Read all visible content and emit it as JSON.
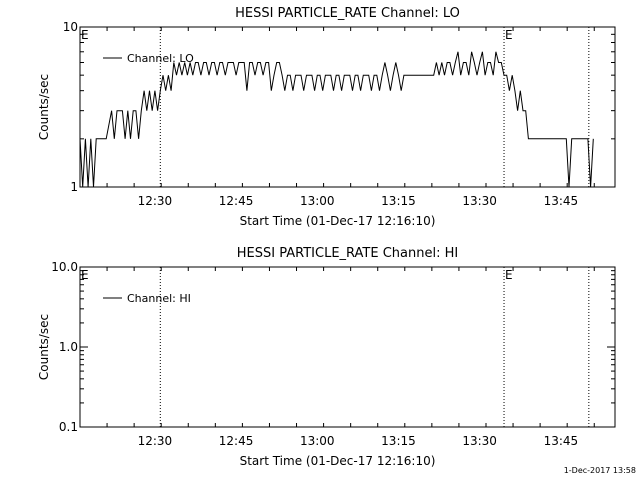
{
  "footer_timestamp": "1-Dec-2017 13:58",
  "chart_data": [
    {
      "type": "line",
      "title": "HESSI PARTICLE_RATE Channel: LO",
      "xlabel": "Start Time (01-Dec-17 12:16:10)",
      "ylabel": "Counts/sec",
      "xlim": [
        "12:16:10",
        "13:55:00"
      ],
      "ylim": [
        1,
        10
      ],
      "yscale": "log",
      "x_ticks": [
        "12:30",
        "12:45",
        "13:00",
        "13:15",
        "13:30",
        "13:45"
      ],
      "y_ticks": [
        "1",
        "10"
      ],
      "legend": {
        "entries": [
          "Channel: LO"
        ],
        "position": "top-left"
      },
      "vertical_markers": [
        {
          "time": "12:31:00",
          "label": ""
        },
        {
          "time": "13:34:30",
          "label": "E"
        },
        {
          "time": "13:50:10",
          "label": ""
        }
      ],
      "annotations": [
        {
          "text": "E",
          "at": "top-left"
        },
        {
          "text": "E",
          "at": "13:34:30"
        }
      ],
      "series": [
        {
          "name": "Channel: LO",
          "points": [
            [
              "12:16:10",
              2
            ],
            [
              "12:16:40",
              1
            ],
            [
              "12:17:10",
              2
            ],
            [
              "12:17:40",
              1
            ],
            [
              "12:18:10",
              2
            ],
            [
              "12:18:40",
              1
            ],
            [
              "12:19:10",
              2
            ],
            [
              "12:20:00",
              2
            ],
            [
              "12:21:00",
              2
            ],
            [
              "12:22:00",
              3
            ],
            [
              "12:22:30",
              2
            ],
            [
              "12:23:00",
              3
            ],
            [
              "12:24:00",
              3
            ],
            [
              "12:24:30",
              2
            ],
            [
              "12:25:00",
              3
            ],
            [
              "12:25:30",
              2
            ],
            [
              "12:26:00",
              3
            ],
            [
              "12:26:30",
              3
            ],
            [
              "12:27:00",
              2
            ],
            [
              "12:27:30",
              3
            ],
            [
              "12:28:00",
              4
            ],
            [
              "12:28:30",
              3
            ],
            [
              "12:29:00",
              4
            ],
            [
              "12:29:30",
              3
            ],
            [
              "12:30:00",
              4
            ],
            [
              "12:30:30",
              3
            ],
            [
              "12:31:00",
              4
            ],
            [
              "12:31:30",
              5
            ],
            [
              "12:32:00",
              4
            ],
            [
              "12:32:30",
              5
            ],
            [
              "12:33:00",
              4
            ],
            [
              "12:33:30",
              6
            ],
            [
              "12:34:00",
              5
            ],
            [
              "12:34:30",
              6
            ],
            [
              "12:35:00",
              5
            ],
            [
              "12:35:30",
              6
            ],
            [
              "12:36:00",
              5
            ],
            [
              "12:36:30",
              6
            ],
            [
              "12:37:00",
              5
            ],
            [
              "12:37:30",
              6
            ],
            [
              "12:38:00",
              6
            ],
            [
              "12:38:30",
              5
            ],
            [
              "12:39:00",
              6
            ],
            [
              "12:39:30",
              6
            ],
            [
              "12:40:00",
              5
            ],
            [
              "12:40:30",
              6
            ],
            [
              "12:41:00",
              6
            ],
            [
              "12:41:30",
              5
            ],
            [
              "12:42:00",
              6
            ],
            [
              "12:42:30",
              6
            ],
            [
              "12:43:00",
              5
            ],
            [
              "12:43:30",
              6
            ],
            [
              "12:44:00",
              6
            ],
            [
              "12:44:30",
              6
            ],
            [
              "12:45:00",
              5
            ],
            [
              "12:45:30",
              6
            ],
            [
              "12:46:00",
              6
            ],
            [
              "12:46:30",
              6
            ],
            [
              "12:47:00",
              4
            ],
            [
              "12:47:30",
              6
            ],
            [
              "12:48:00",
              6
            ],
            [
              "12:48:30",
              5
            ],
            [
              "12:49:00",
              6
            ],
            [
              "12:49:30",
              6
            ],
            [
              "12:50:00",
              5
            ],
            [
              "12:50:30",
              6
            ],
            [
              "12:51:00",
              6
            ],
            [
              "12:51:30",
              4
            ],
            [
              "12:52:00",
              5
            ],
            [
              "12:52:30",
              6
            ],
            [
              "12:53:00",
              6
            ],
            [
              "12:53:30",
              5
            ],
            [
              "12:54:00",
              4
            ],
            [
              "12:54:30",
              5
            ],
            [
              "12:55:00",
              5
            ],
            [
              "12:55:30",
              4
            ],
            [
              "12:56:00",
              5
            ],
            [
              "12:56:30",
              5
            ],
            [
              "12:57:00",
              5
            ],
            [
              "12:57:30",
              4
            ],
            [
              "12:58:00",
              5
            ],
            [
              "12:58:30",
              5
            ],
            [
              "12:59:00",
              5
            ],
            [
              "12:59:30",
              4
            ],
            [
              "13:00:00",
              5
            ],
            [
              "13:00:30",
              5
            ],
            [
              "13:01:00",
              4
            ],
            [
              "13:01:30",
              5
            ],
            [
              "13:02:00",
              5
            ],
            [
              "13:02:30",
              5
            ],
            [
              "13:03:00",
              4
            ],
            [
              "13:03:30",
              5
            ],
            [
              "13:04:00",
              5
            ],
            [
              "13:04:30",
              4
            ],
            [
              "13:05:00",
              5
            ],
            [
              "13:05:30",
              5
            ],
            [
              "13:06:00",
              5
            ],
            [
              "13:06:30",
              4
            ],
            [
              "13:07:00",
              5
            ],
            [
              "13:07:30",
              5
            ],
            [
              "13:08:00",
              4
            ],
            [
              "13:08:30",
              5
            ],
            [
              "13:09:00",
              5
            ],
            [
              "13:09:30",
              5
            ],
            [
              "13:10:00",
              4
            ],
            [
              "13:10:30",
              5
            ],
            [
              "13:11:00",
              5
            ],
            [
              "13:11:30",
              4
            ],
            [
              "13:12:00",
              5
            ],
            [
              "13:12:30",
              6
            ],
            [
              "13:13:00",
              5
            ],
            [
              "13:13:30",
              4
            ],
            [
              "13:14:00",
              5
            ],
            [
              "13:14:30",
              6
            ],
            [
              "13:15:00",
              5
            ],
            [
              "13:15:30",
              4
            ],
            [
              "13:16:00",
              5
            ],
            [
              "13:16:30",
              5
            ],
            [
              "13:17:00",
              5
            ],
            [
              "13:17:30",
              5
            ],
            [
              "13:18:00",
              5
            ],
            [
              "13:18:30",
              5
            ],
            [
              "13:19:00",
              5
            ],
            [
              "13:19:30",
              5
            ],
            [
              "13:20:00",
              5
            ],
            [
              "13:20:30",
              5
            ],
            [
              "13:21:00",
              5
            ],
            [
              "13:21:30",
              5
            ],
            [
              "13:22:00",
              6
            ],
            [
              "13:22:30",
              5
            ],
            [
              "13:23:00",
              6
            ],
            [
              "13:23:30",
              5
            ],
            [
              "13:24:00",
              6
            ],
            [
              "13:24:30",
              6
            ],
            [
              "13:25:00",
              5
            ],
            [
              "13:25:30",
              6
            ],
            [
              "13:26:00",
              7
            ],
            [
              "13:26:30",
              5
            ],
            [
              "13:27:00",
              6
            ],
            [
              "13:27:30",
              6
            ],
            [
              "13:28:00",
              5
            ],
            [
              "13:28:30",
              7
            ],
            [
              "13:29:00",
              6
            ],
            [
              "13:29:30",
              5
            ],
            [
              "13:30:00",
              6
            ],
            [
              "13:30:30",
              7
            ],
            [
              "13:31:00",
              5
            ],
            [
              "13:31:30",
              6
            ],
            [
              "13:32:00",
              6
            ],
            [
              "13:32:30",
              5
            ],
            [
              "13:33:00",
              7
            ],
            [
              "13:33:30",
              6
            ],
            [
              "13:34:00",
              6
            ],
            [
              "13:34:30",
              5
            ],
            [
              "13:35:00",
              5
            ],
            [
              "13:35:30",
              4
            ],
            [
              "13:36:00",
              5
            ],
            [
              "13:36:30",
              4
            ],
            [
              "13:37:00",
              3
            ],
            [
              "13:37:30",
              4
            ],
            [
              "13:38:00",
              3
            ],
            [
              "13:38:30",
              3
            ],
            [
              "13:39:00",
              2
            ],
            [
              "13:40:00",
              2
            ],
            [
              "13:41:00",
              2
            ],
            [
              "13:42:00",
              2
            ],
            [
              "13:43:00",
              2
            ],
            [
              "13:44:00",
              2
            ],
            [
              "13:45:00",
              2
            ],
            [
              "13:46:00",
              2
            ],
            [
              "13:46:30",
              1
            ],
            [
              "13:47:00",
              2
            ],
            [
              "13:48:00",
              2
            ],
            [
              "13:49:00",
              2
            ],
            [
              "13:50:00",
              2
            ],
            [
              "13:50:30",
              1
            ],
            [
              "13:51:00",
              2
            ]
          ]
        }
      ]
    },
    {
      "type": "line",
      "title": "HESSI PARTICLE_RATE Channel: HI",
      "xlabel": "Start Time (01-Dec-17 12:16:10)",
      "ylabel": "Counts/sec",
      "xlim": [
        "12:16:10",
        "13:55:00"
      ],
      "ylim": [
        0.1,
        10
      ],
      "yscale": "log",
      "x_ticks": [
        "12:30",
        "12:45",
        "13:00",
        "13:15",
        "13:30",
        "13:45"
      ],
      "y_ticks": [
        "0.1",
        "1.0",
        "10.0"
      ],
      "legend": {
        "entries": [
          "Channel: HI"
        ],
        "position": "top-left"
      },
      "vertical_markers": [
        {
          "time": "12:31:00",
          "label": ""
        },
        {
          "time": "13:34:30",
          "label": "E"
        },
        {
          "time": "13:50:10",
          "label": ""
        }
      ],
      "annotations": [
        {
          "text": "E",
          "at": "top-left"
        },
        {
          "text": "E",
          "at": "13:34:30"
        }
      ],
      "series": [
        {
          "name": "Channel: HI",
          "points": []
        }
      ]
    }
  ]
}
